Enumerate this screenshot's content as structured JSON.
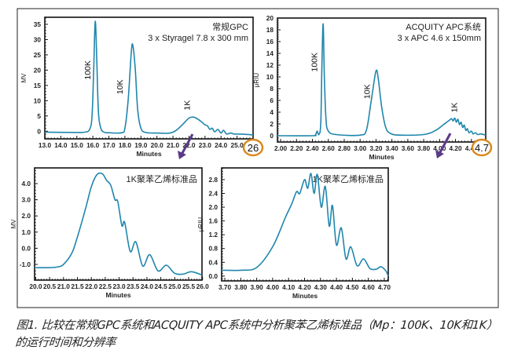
{
  "colors": {
    "line": "#1f86ad",
    "highlight": "#d98a1f",
    "arrow": "#5a3a88",
    "frame": "#222222"
  },
  "highlights": [
    {
      "label": "26",
      "chart": 0
    },
    {
      "label": "4.7",
      "chart": 1
    }
  ],
  "caption": "图1. 比较在常规GPC系统和ACQUITY APC系统中分析聚苯乙烯标准品（Mp：100K、10K和1K）的运行时间和分辨率",
  "chart_data": [
    {
      "type": "line",
      "title": [
        "常规GPC",
        "3 x Styragel 7.8 x 300 mm"
      ],
      "xlabel": "Minutes",
      "ylabel": "MV",
      "xlim": [
        13.0,
        26.0
      ],
      "ylim": [
        -2.5,
        37.3
      ],
      "xticks": [
        "13.0",
        "14.0",
        "15.0",
        "16.0",
        "17.0",
        "18.0",
        "19.0",
        "20.0",
        "21.0",
        "22.0",
        "23.0",
        "24.0",
        "25.0"
      ],
      "yticks": [
        "0",
        "5",
        "10",
        "15",
        "20",
        "25",
        "30",
        "35"
      ],
      "annotations": [
        {
          "text": "100K",
          "x": 15.85,
          "y": 20
        },
        {
          "text": "10K",
          "x": 17.85,
          "y": 14.5
        },
        {
          "text": "1K",
          "x": 22.05,
          "y": 8.5
        }
      ],
      "x": [
        13.0,
        15.0,
        15.5,
        15.8,
        15.95,
        16.05,
        16.15,
        16.25,
        16.35,
        16.5,
        16.7,
        17.0,
        17.8,
        18.0,
        18.2,
        18.4,
        18.5,
        18.65,
        18.8,
        19.0,
        19.3,
        20.0,
        20.8,
        21.2,
        21.6,
        22.0,
        22.3,
        22.6,
        22.8,
        23.0,
        23.15,
        23.3,
        23.45,
        23.6,
        23.8,
        24.0,
        24.15,
        24.35,
        24.6,
        24.8,
        25.0,
        25.5,
        26.0
      ],
      "y": [
        -0.3,
        -0.4,
        -0.3,
        0.6,
        5,
        20,
        36,
        22,
        6,
        1,
        -0.3,
        -0.5,
        -0.5,
        1,
        10,
        26,
        28,
        20,
        7,
        1,
        -0.4,
        -0.6,
        -0.6,
        0.3,
        2.2,
        4.3,
        4.6,
        3.8,
        3.0,
        2.1,
        1.8,
        0.6,
        1.0,
        -0.2,
        0.6,
        -0.6,
        0.3,
        -0.9,
        -0.6,
        -0.9,
        -0.9,
        -1.0,
        -1.2
      ]
    },
    {
      "type": "line",
      "title": [
        "ACQUITY APC系统",
        "3 x APC 4.6 x 150mm"
      ],
      "xlabel": "Minutes",
      "ylabel": "μRIU",
      "xlim": [
        1.96,
        4.58
      ],
      "ylim": [
        -1.07,
        20.0
      ],
      "xticks": [
        "2.00",
        "2.20",
        "2.40",
        "2.60",
        "2.80",
        "3.00",
        "3.20",
        "3.40",
        "3.60",
        "3.80",
        "4.00",
        "4.20",
        "4.40"
      ],
      "yticks": [
        "0",
        "2",
        "4",
        "6",
        "8",
        "10",
        "12",
        "14",
        "16",
        "18",
        "20"
      ],
      "annotations": [
        {
          "text": "100K",
          "x": 2.46,
          "y": 12.5
        },
        {
          "text": "10K",
          "x": 3.12,
          "y": 7.5
        },
        {
          "text": "1K",
          "x": 4.22,
          "y": 4.8
        }
      ],
      "x": [
        1.96,
        2.4,
        2.44,
        2.46,
        2.48,
        2.505,
        2.52,
        2.535,
        2.55,
        2.57,
        2.6,
        2.7,
        3.0,
        3.08,
        3.14,
        3.2,
        3.23,
        3.27,
        3.32,
        3.38,
        3.5,
        3.8,
        3.95,
        4.05,
        4.12,
        4.15,
        4.17,
        4.19,
        4.21,
        4.23,
        4.25,
        4.27,
        4.29,
        4.31,
        4.33,
        4.35,
        4.37,
        4.4,
        4.42,
        4.45,
        4.48,
        4.52,
        4.58
      ],
      "y": [
        0,
        0,
        0.2,
        0.8,
        0.2,
        2,
        12,
        19,
        10,
        3,
        0.8,
        0.2,
        0.1,
        1,
        6,
        11,
        9.5,
        5,
        1.5,
        0.4,
        0.1,
        0.2,
        0.9,
        1.9,
        2.6,
        2.9,
        2.5,
        3.0,
        2.3,
        2.8,
        1.9,
        2.3,
        1.4,
        1.8,
        0.9,
        1.2,
        0.5,
        0.8,
        0.3,
        0.5,
        0.2,
        0.3,
        0.1
      ]
    },
    {
      "type": "line",
      "title": [
        "1K聚苯乙烯标准品"
      ],
      "xlabel": "Minutes",
      "ylabel": "MV",
      "xlim": [
        19.96,
        25.98
      ],
      "ylim": [
        -1.97,
        4.97
      ],
      "xticks": [
        "20.0",
        "20.5",
        "21.0",
        "21.5",
        "22.0",
        "22.5",
        "23.0",
        "23.5",
        "24.0",
        "24.5",
        "25.0",
        "25.5",
        "26.0"
      ],
      "yticks": [
        "-1.0",
        "0.0",
        "1.0",
        "2.0",
        "3.0",
        "4.0"
      ],
      "annotations": [],
      "x": [
        19.96,
        20.5,
        20.8,
        21.0,
        21.3,
        21.5,
        21.8,
        22.0,
        22.2,
        22.4,
        22.55,
        22.7,
        22.85,
        22.95,
        23.1,
        23.2,
        23.4,
        23.6,
        23.85,
        24.1,
        24.4,
        24.7,
        25.0,
        25.3,
        25.6,
        25.98
      ],
      "y": [
        -1.2,
        -1.2,
        -1.15,
        -1.0,
        -0.3,
        0.7,
        2.5,
        3.8,
        4.55,
        4.6,
        4.2,
        3.9,
        3.0,
        2.9,
        1.4,
        1.6,
        -0.2,
        0.4,
        -1.1,
        -0.4,
        -1.4,
        -1.05,
        -1.55,
        -1.6,
        -1.45,
        -1.65
      ]
    },
    {
      "type": "line",
      "title": [
        "1K聚苯乙烯标准品"
      ],
      "xlabel": "Minutes",
      "ylabel": "μRIU",
      "xlim": [
        3.68,
        4.725
      ],
      "ylim": [
        -0.14,
        3.14
      ],
      "xticks": [
        "3.70",
        "3.80",
        "3.90",
        "4.00",
        "4.10",
        "4.20",
        "4.30",
        "4.40",
        "4.50",
        "4.60",
        "4.70"
      ],
      "yticks": [
        "0.0",
        "0.4",
        "0.8",
        "1.2",
        "1.6",
        "2.0",
        "2.4",
        "2.8"
      ],
      "annotations": [],
      "x": [
        3.68,
        3.8,
        3.9,
        4.0,
        4.08,
        4.12,
        4.15,
        4.17,
        4.2,
        4.22,
        4.24,
        4.26,
        4.28,
        4.305,
        4.33,
        4.355,
        4.375,
        4.4,
        4.43,
        4.46,
        4.49,
        4.53,
        4.57,
        4.61,
        4.65,
        4.68,
        4.71,
        4.725
      ],
      "y": [
        0.17,
        0.17,
        0.25,
        0.85,
        1.7,
        2.1,
        2.45,
        2.4,
        2.8,
        2.55,
        2.98,
        2.4,
        2.95,
        2.0,
        2.6,
        1.45,
        2.05,
        0.9,
        1.4,
        0.5,
        0.85,
        0.3,
        0.5,
        0.22,
        0.2,
        0.27,
        0.15,
        0.0
      ]
    }
  ]
}
